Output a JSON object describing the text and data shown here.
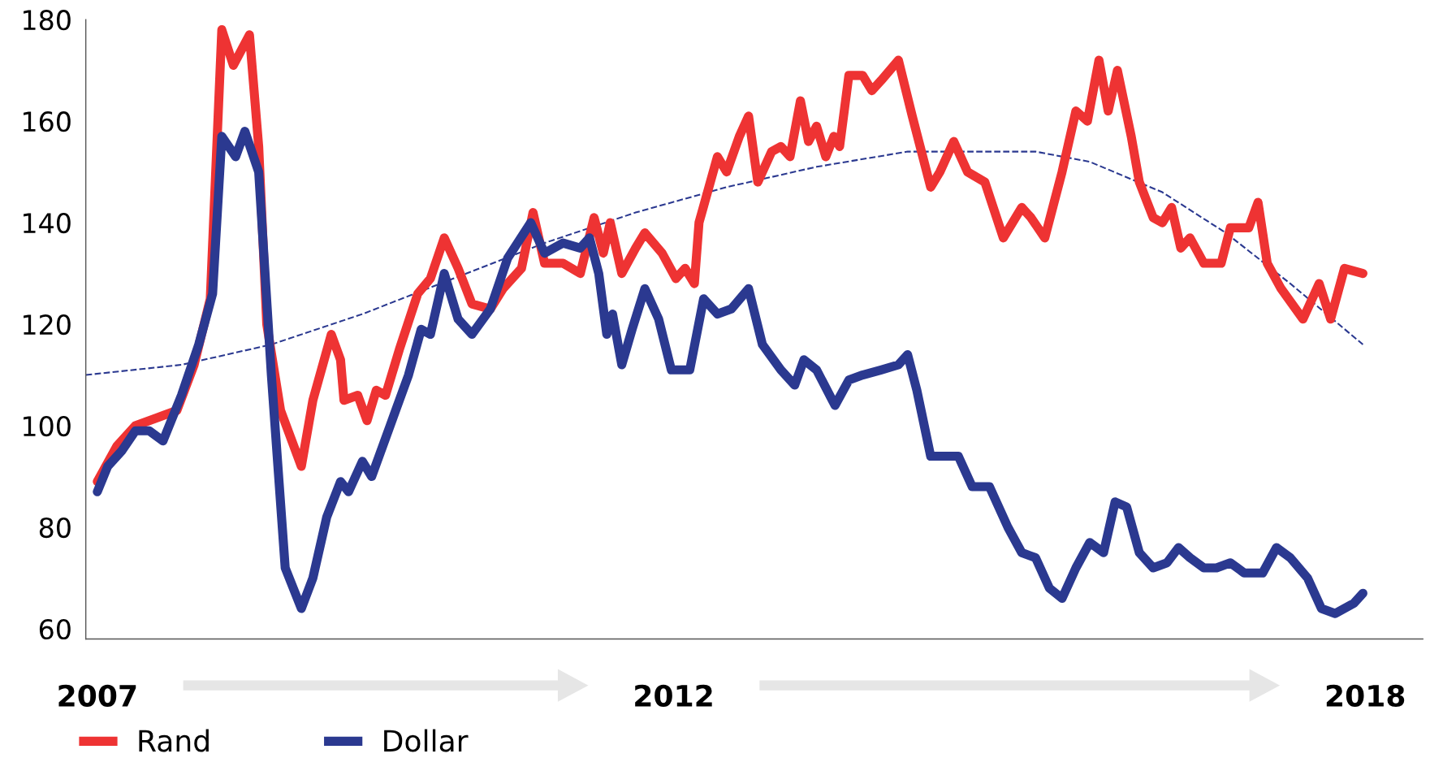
{
  "chart_data": {
    "type": "line",
    "xlim": [
      2006.9,
      2018.5
    ],
    "ylim": [
      58,
      180
    ],
    "xticks": [
      2007,
      2012,
      2018
    ],
    "yticks": [
      60,
      80,
      100,
      120,
      140,
      160,
      180
    ],
    "grid": false,
    "legend": "bottom left",
    "marker": "none",
    "line_style": "solid",
    "series": [
      {
        "name": "Rand",
        "color": "#ee3333",
        "x": [
          2007.0,
          2007.17,
          2007.33,
          2007.57,
          2007.69,
          2007.84,
          2007.98,
          2008.08,
          2008.18,
          2008.32,
          2008.4,
          2008.47,
          2008.59,
          2008.77,
          2008.87,
          2009.03,
          2009.11,
          2009.14,
          2009.26,
          2009.34,
          2009.42,
          2009.5,
          2009.62,
          2009.78,
          2009.89,
          2010.01,
          2010.13,
          2010.25,
          2010.41,
          2010.52,
          2010.68,
          2010.78,
          2010.88,
          2011.04,
          2011.19,
          2011.31,
          2011.39,
          2011.45,
          2011.55,
          2011.67,
          2011.75,
          2011.9,
          2012.02,
          2012.1,
          2012.18,
          2012.22,
          2012.38,
          2012.46,
          2012.57,
          2012.65,
          2012.73,
          2012.85,
          2012.93,
          2013.01,
          2013.1,
          2013.17,
          2013.24,
          2013.32,
          2013.39,
          2013.44,
          2013.52,
          2013.64,
          2013.72,
          2013.8,
          2013.95,
          2014.07,
          2014.23,
          2014.31,
          2014.43,
          2014.55,
          2014.7,
          2014.86,
          2015.02,
          2015.1,
          2015.22,
          2015.37,
          2015.49,
          2015.59,
          2015.69,
          2015.77,
          2015.85,
          2015.97,
          2016.04,
          2016.16,
          2016.24,
          2016.32,
          2016.4,
          2016.48,
          2016.6,
          2016.75,
          2016.83,
          2016.99,
          2017.07,
          2017.15,
          2017.27,
          2017.46,
          2017.6,
          2017.7,
          2017.82,
          2017.98
        ],
        "values": [
          89,
          96,
          100,
          102,
          103,
          112,
          125,
          178,
          171,
          177,
          155,
          120,
          103,
          92,
          105,
          118,
          113,
          105,
          106,
          101,
          107,
          106,
          115,
          126,
          129,
          137,
          131,
          124,
          123,
          127,
          131,
          142,
          132,
          132,
          130,
          141,
          134,
          140,
          130,
          135,
          138,
          134,
          129,
          131,
          128,
          140,
          153,
          150,
          157,
          161,
          148,
          154,
          155,
          153,
          164,
          156,
          159,
          153,
          157,
          155,
          169,
          169,
          166,
          168,
          172,
          161,
          147,
          150,
          156,
          150,
          148,
          137,
          143,
          141,
          137,
          150,
          162,
          160,
          172,
          162,
          170,
          157,
          148,
          141,
          140,
          143,
          135,
          137,
          132,
          132,
          139,
          139,
          144,
          132,
          127,
          121,
          128,
          121,
          131,
          130
        ]
      },
      {
        "name": "Dollar",
        "color": "#2b3990",
        "x": [
          2007.0,
          2007.09,
          2007.21,
          2007.33,
          2007.45,
          2007.57,
          2007.73,
          2007.88,
          2008.0,
          2008.08,
          2008.2,
          2008.28,
          2008.4,
          2008.51,
          2008.63,
          2008.77,
          2008.87,
          2008.99,
          2009.11,
          2009.18,
          2009.3,
          2009.38,
          2009.54,
          2009.7,
          2009.81,
          2009.89,
          2010.01,
          2010.13,
          2010.25,
          2010.41,
          2010.56,
          2010.76,
          2010.88,
          2011.04,
          2011.19,
          2011.27,
          2011.35,
          2011.42,
          2011.47,
          2011.55,
          2011.64,
          2011.75,
          2011.87,
          2011.98,
          2012.14,
          2012.26,
          2012.38,
          2012.5,
          2012.65,
          2012.77,
          2012.93,
          2013.05,
          2013.13,
          2013.24,
          2013.4,
          2013.52,
          2013.64,
          2013.8,
          2013.95,
          2014.03,
          2014.11,
          2014.23,
          2014.35,
          2014.47,
          2014.59,
          2014.74,
          2014.9,
          2015.02,
          2015.14,
          2015.26,
          2015.37,
          2015.49,
          2015.61,
          2015.73,
          2015.83,
          2015.93,
          2016.04,
          2016.16,
          2016.28,
          2016.38,
          2016.48,
          2016.6,
          2016.71,
          2016.83,
          2016.95,
          2017.11,
          2017.23,
          2017.35,
          2017.5,
          2017.62,
          2017.74,
          2017.9,
          2017.98
        ],
        "values": [
          87,
          92,
          95,
          99,
          99,
          97,
          106,
          116,
          126,
          157,
          153,
          158,
          150,
          110,
          72,
          64,
          70,
          82,
          89,
          87,
          93,
          90,
          100,
          110,
          119,
          118,
          130,
          121,
          118,
          123,
          133,
          140,
          134,
          136,
          135,
          137,
          130,
          118,
          122,
          112,
          119,
          127,
          121,
          111,
          111,
          125,
          122,
          123,
          127,
          116,
          111,
          108,
          113,
          111,
          104,
          109,
          110,
          111,
          112,
          114,
          107,
          94,
          94,
          94,
          88,
          88,
          80,
          75,
          74,
          68,
          66,
          72,
          77,
          75,
          85,
          84,
          75,
          72,
          73,
          76,
          74,
          72,
          72,
          73,
          71,
          71,
          76,
          74,
          70,
          64,
          63,
          65,
          67
        ]
      },
      {
        "color": "#2b3990",
        "line_style": "dashed",
        "x": [
          2006.9,
          2007.73,
          2008.51,
          2009.3,
          2010.09,
          2010.88,
          2011.67,
          2012.46,
          2013.24,
          2014.03,
          2015.14,
          2015.61,
          2016.24,
          2016.79,
          2017.35,
          2017.98
        ],
        "values": [
          110,
          112,
          116,
          122,
          129,
          136,
          142,
          147,
          151,
          154,
          154,
          152,
          146,
          138,
          128,
          116
        ]
      }
    ]
  }
}
